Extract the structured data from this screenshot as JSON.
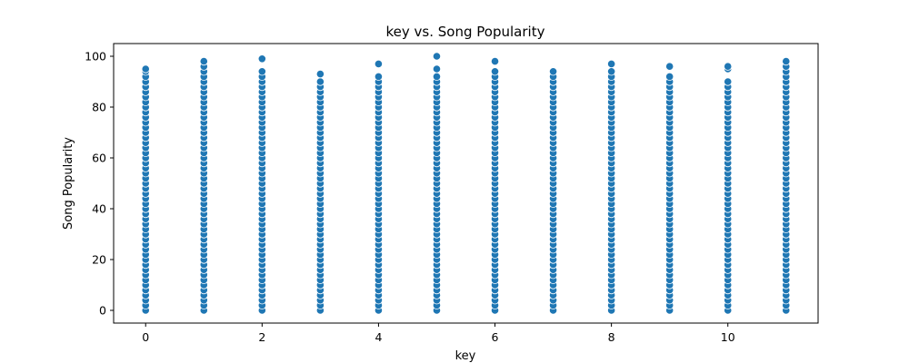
{
  "chart_data": {
    "type": "scatter",
    "title": "key vs. Song Popularity",
    "xlabel": "key",
    "ylabel": "Song Popularity",
    "xlim": [
      -0.55,
      11.55
    ],
    "ylim": [
      -5,
      105
    ],
    "xticks": [
      0,
      2,
      4,
      6,
      8,
      10
    ],
    "yticks": [
      0,
      20,
      40,
      60,
      80,
      100
    ],
    "grid": false,
    "marker_color": "#1f77b4",
    "series": [
      {
        "points_by_key": [
          {
            "x": 0,
            "y": [
              0,
              2,
              4,
              6,
              8,
              10,
              12,
              14,
              16,
              18,
              20,
              22,
              24,
              26,
              28,
              30,
              32,
              34,
              36,
              38,
              40,
              42,
              44,
              46,
              48,
              50,
              52,
              54,
              56,
              58,
              60,
              62,
              64,
              66,
              68,
              70,
              72,
              74,
              76,
              78,
              80,
              82,
              84,
              86,
              88,
              90,
              92,
              94,
              95
            ]
          },
          {
            "x": 1,
            "y": [
              0,
              2,
              4,
              6,
              8,
              10,
              12,
              14,
              16,
              18,
              20,
              22,
              24,
              26,
              28,
              30,
              32,
              34,
              36,
              38,
              40,
              42,
              44,
              46,
              48,
              50,
              52,
              54,
              56,
              58,
              60,
              62,
              64,
              66,
              68,
              70,
              72,
              74,
              76,
              78,
              80,
              82,
              84,
              86,
              88,
              90,
              92,
              94,
              96,
              98
            ]
          },
          {
            "x": 2,
            "y": [
              0,
              2,
              4,
              6,
              8,
              10,
              12,
              14,
              16,
              18,
              20,
              22,
              24,
              26,
              28,
              30,
              32,
              34,
              36,
              38,
              40,
              42,
              44,
              46,
              48,
              50,
              52,
              54,
              56,
              58,
              60,
              62,
              64,
              66,
              68,
              70,
              72,
              74,
              76,
              78,
              80,
              82,
              84,
              86,
              88,
              90,
              92,
              94,
              99
            ]
          },
          {
            "x": 3,
            "y": [
              0,
              2,
              4,
              6,
              8,
              10,
              12,
              14,
              16,
              18,
              20,
              22,
              24,
              26,
              28,
              30,
              32,
              34,
              36,
              38,
              40,
              42,
              44,
              46,
              48,
              50,
              52,
              54,
              56,
              58,
              60,
              62,
              64,
              66,
              68,
              70,
              72,
              74,
              76,
              78,
              80,
              82,
              84,
              86,
              88,
              90,
              93
            ]
          },
          {
            "x": 4,
            "y": [
              0,
              2,
              4,
              6,
              8,
              10,
              12,
              14,
              16,
              18,
              20,
              22,
              24,
              26,
              28,
              30,
              32,
              34,
              36,
              38,
              40,
              42,
              44,
              46,
              48,
              50,
              52,
              54,
              56,
              58,
              60,
              62,
              64,
              66,
              68,
              70,
              72,
              74,
              76,
              78,
              80,
              82,
              84,
              86,
              88,
              90,
              92,
              97
            ]
          },
          {
            "x": 5,
            "y": [
              0,
              2,
              4,
              6,
              8,
              10,
              12,
              14,
              16,
              18,
              20,
              22,
              24,
              26,
              28,
              30,
              32,
              34,
              36,
              38,
              40,
              42,
              44,
              46,
              48,
              50,
              52,
              54,
              56,
              58,
              60,
              62,
              64,
              66,
              68,
              70,
              72,
              74,
              76,
              78,
              80,
              82,
              84,
              86,
              88,
              90,
              92,
              95,
              100
            ]
          },
          {
            "x": 6,
            "y": [
              0,
              2,
              4,
              6,
              8,
              10,
              12,
              14,
              16,
              18,
              20,
              22,
              24,
              26,
              28,
              30,
              32,
              34,
              36,
              38,
              40,
              42,
              44,
              46,
              48,
              50,
              52,
              54,
              56,
              58,
              60,
              62,
              64,
              66,
              68,
              70,
              72,
              74,
              76,
              78,
              80,
              82,
              84,
              86,
              88,
              90,
              92,
              94,
              98
            ]
          },
          {
            "x": 7,
            "y": [
              0,
              2,
              4,
              6,
              8,
              10,
              12,
              14,
              16,
              18,
              20,
              22,
              24,
              26,
              28,
              30,
              32,
              34,
              36,
              38,
              40,
              42,
              44,
              46,
              48,
              50,
              52,
              54,
              56,
              58,
              60,
              62,
              64,
              66,
              68,
              70,
              72,
              74,
              76,
              78,
              80,
              82,
              84,
              86,
              88,
              90,
              92,
              94
            ]
          },
          {
            "x": 8,
            "y": [
              0,
              2,
              4,
              6,
              8,
              10,
              12,
              14,
              16,
              18,
              20,
              22,
              24,
              26,
              28,
              30,
              32,
              34,
              36,
              38,
              40,
              42,
              44,
              46,
              48,
              50,
              52,
              54,
              56,
              58,
              60,
              62,
              64,
              66,
              68,
              70,
              72,
              74,
              76,
              78,
              80,
              82,
              84,
              86,
              88,
              90,
              92,
              94,
              97
            ]
          },
          {
            "x": 9,
            "y": [
              0,
              2,
              4,
              6,
              8,
              10,
              12,
              14,
              16,
              18,
              20,
              22,
              24,
              26,
              28,
              30,
              32,
              34,
              36,
              38,
              40,
              42,
              44,
              46,
              48,
              50,
              52,
              54,
              56,
              58,
              60,
              62,
              64,
              66,
              68,
              70,
              72,
              74,
              76,
              78,
              80,
              82,
              84,
              86,
              88,
              90,
              92,
              96
            ]
          },
          {
            "x": 10,
            "y": [
              0,
              2,
              4,
              6,
              8,
              10,
              12,
              14,
              16,
              18,
              20,
              22,
              24,
              26,
              28,
              30,
              32,
              34,
              36,
              38,
              40,
              42,
              44,
              46,
              48,
              50,
              52,
              54,
              56,
              58,
              60,
              62,
              64,
              66,
              68,
              70,
              72,
              74,
              76,
              78,
              80,
              82,
              84,
              86,
              88,
              90,
              95,
              96
            ]
          },
          {
            "x": 11,
            "y": [
              0,
              2,
              4,
              6,
              8,
              10,
              12,
              14,
              16,
              18,
              20,
              22,
              24,
              26,
              28,
              30,
              32,
              34,
              36,
              38,
              40,
              42,
              44,
              46,
              48,
              50,
              52,
              54,
              56,
              58,
              60,
              62,
              64,
              66,
              68,
              70,
              72,
              74,
              76,
              78,
              80,
              82,
              84,
              86,
              88,
              90,
              92,
              94,
              96,
              98
            ]
          }
        ]
      }
    ]
  }
}
